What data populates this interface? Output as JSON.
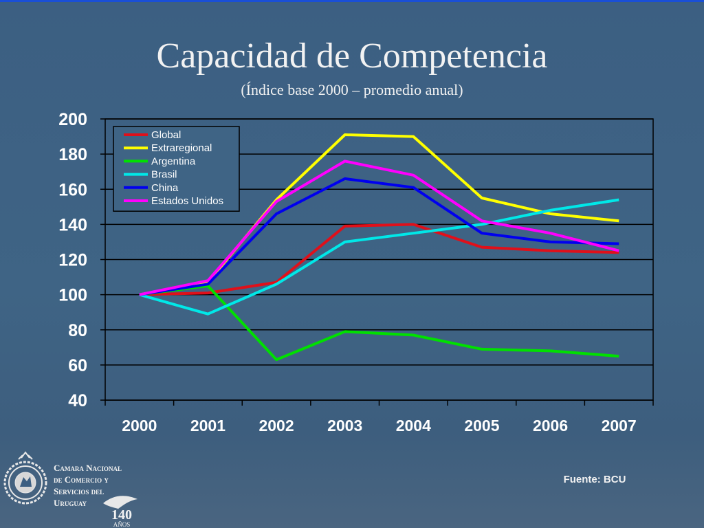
{
  "slide": {
    "title": "Capacidad de Competencia",
    "subtitle": "(Índice base 2000 – promedio anual)",
    "source": "Fuente: BCU"
  },
  "organization": {
    "lines": [
      "Camara Nacional",
      "de Comercio y",
      "Servicios del",
      "Uruguay"
    ],
    "anniversary_number": "140",
    "anniversary_label": "AÑOS",
    "seal_text": "BOLSA DE COMERCIO URUGUAY"
  },
  "chart_data": {
    "type": "line",
    "x": [
      "2000",
      "2001",
      "2002",
      "2003",
      "2004",
      "2005",
      "2006",
      "2007"
    ],
    "ylim": [
      40,
      200
    ],
    "yticks": [
      40,
      60,
      80,
      100,
      120,
      140,
      160,
      180,
      200
    ],
    "grid": true,
    "legend_position": "top-left",
    "series": [
      {
        "name": "Global",
        "color": "#e0101a",
        "values": [
          100,
          101,
          107,
          139,
          140,
          127,
          125,
          124
        ]
      },
      {
        "name": "Extraregional",
        "color": "#ffff00",
        "values": [
          100,
          107,
          154,
          191,
          190,
          155,
          146,
          142
        ]
      },
      {
        "name": "Argentina",
        "color": "#00e000",
        "values": [
          100,
          105,
          63,
          79,
          77,
          69,
          68,
          65
        ]
      },
      {
        "name": "Brasil",
        "color": "#00e8e8",
        "values": [
          100,
          89,
          106,
          130,
          135,
          140,
          148,
          154
        ]
      },
      {
        "name": "China",
        "color": "#0000ee",
        "values": [
          100,
          106,
          146,
          166,
          161,
          135,
          130,
          129
        ]
      },
      {
        "name": "Estados Unidos",
        "color": "#ff00ff",
        "values": [
          100,
          108,
          153,
          176,
          168,
          142,
          135,
          125
        ]
      }
    ]
  }
}
